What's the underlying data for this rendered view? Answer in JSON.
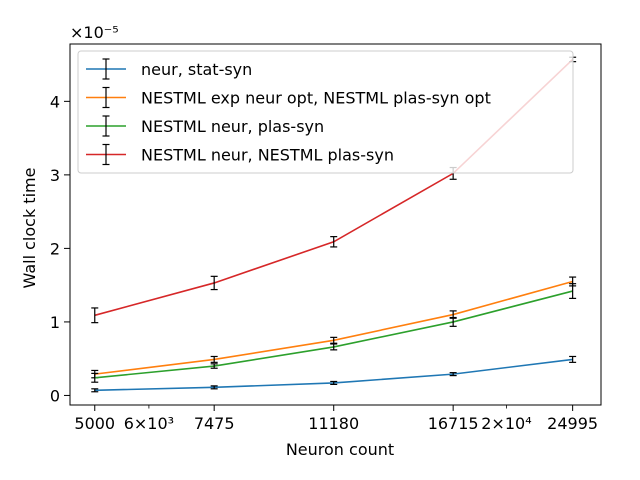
{
  "chart_data": {
    "type": "line",
    "title": "",
    "xlabel": "Neuron count",
    "ylabel": "Wall clock time",
    "x_scale": "log",
    "x_ticks": [
      5000,
      7475,
      11180,
      16715,
      24995
    ],
    "x_tick_labels": [
      "5000",
      "7475",
      "11180",
      "16715",
      "24995"
    ],
    "x_minor_ticks": [
      {
        "value": 6000,
        "label": "6×10³"
      },
      {
        "value": 20000,
        "label": "2×10⁴"
      }
    ],
    "xlim": [
      4600,
      27500
    ],
    "y_ticks": [
      0,
      1,
      2,
      3,
      4
    ],
    "y_tick_labels": [
      "0",
      "1",
      "2",
      "3",
      "4"
    ],
    "ylim": [
      -0.13,
      4.78
    ],
    "y_multiplier": "×10⁻⁵",
    "grid": false,
    "legend_position": "top-left",
    "x": [
      5000,
      7475,
      11180,
      16715,
      24995
    ],
    "series": [
      {
        "name": "neur, stat-syn",
        "color": "#1f77b4",
        "values": [
          0.07,
          0.11,
          0.17,
          0.29,
          0.49
        ],
        "errors": [
          0.02,
          0.02,
          0.02,
          0.02,
          0.04
        ]
      },
      {
        "name": "NESTML exp neur opt, NESTML plas-syn opt",
        "color": "#ff7f0e",
        "values": [
          0.29,
          0.49,
          0.75,
          1.1,
          1.55
        ],
        "errors": [
          0.05,
          0.04,
          0.04,
          0.05,
          0.06
        ]
      },
      {
        "name": "NESTML neur, plas-syn",
        "color": "#2ca02c",
        "values": [
          0.24,
          0.4,
          0.66,
          1.0,
          1.42
        ],
        "errors": [
          0.06,
          0.03,
          0.04,
          0.06,
          0.1
        ]
      },
      {
        "name": "NESTML neur, NESTML plas-syn",
        "color": "#d62728",
        "values": [
          1.09,
          1.53,
          2.09,
          3.02,
          4.57
        ],
        "errors": [
          0.1,
          0.09,
          0.07,
          0.08,
          0.03
        ]
      }
    ]
  }
}
